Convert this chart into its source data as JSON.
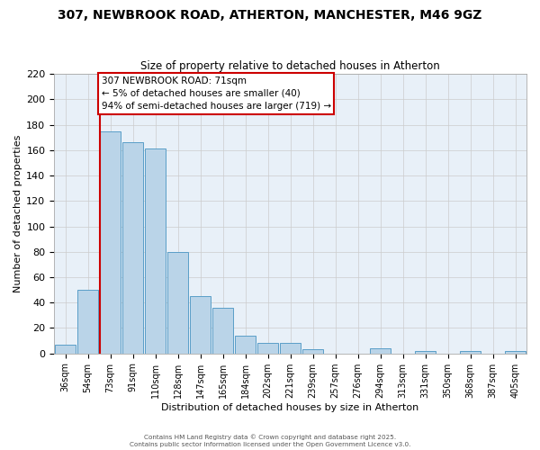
{
  "title": "307, NEWBROOK ROAD, ATHERTON, MANCHESTER, M46 9GZ",
  "subtitle": "Size of property relative to detached houses in Atherton",
  "xlabel": "Distribution of detached houses by size in Atherton",
  "ylabel": "Number of detached properties",
  "bar_labels": [
    "36sqm",
    "54sqm",
    "73sqm",
    "91sqm",
    "110sqm",
    "128sqm",
    "147sqm",
    "165sqm",
    "184sqm",
    "202sqm",
    "221sqm",
    "239sqm",
    "257sqm",
    "276sqm",
    "294sqm",
    "313sqm",
    "331sqm",
    "350sqm",
    "368sqm",
    "387sqm",
    "405sqm"
  ],
  "bar_values": [
    7,
    50,
    175,
    166,
    161,
    80,
    45,
    36,
    14,
    8,
    8,
    3,
    0,
    0,
    4,
    0,
    2,
    0,
    2,
    0,
    2
  ],
  "bar_color": "#bad4e8",
  "bar_edge_color": "#5a9ec8",
  "grid_color": "#cccccc",
  "bg_color": "#e8f0f8",
  "fig_bg_color": "#ffffff",
  "vline_bin": 2,
  "vline_color": "#cc0000",
  "annotation_text": "307 NEWBROOK ROAD: 71sqm\n← 5% of detached houses are smaller (40)\n94% of semi-detached houses are larger (719) →",
  "annotation_box_facecolor": "#ffffff",
  "annotation_box_edgecolor": "#cc0000",
  "footer1": "Contains HM Land Registry data © Crown copyright and database right 2025.",
  "footer2": "Contains public sector information licensed under the Open Government Licence v3.0.",
  "ylim": [
    0,
    220
  ],
  "yticks": [
    0,
    20,
    40,
    60,
    80,
    100,
    120,
    140,
    160,
    180,
    200,
    220
  ]
}
